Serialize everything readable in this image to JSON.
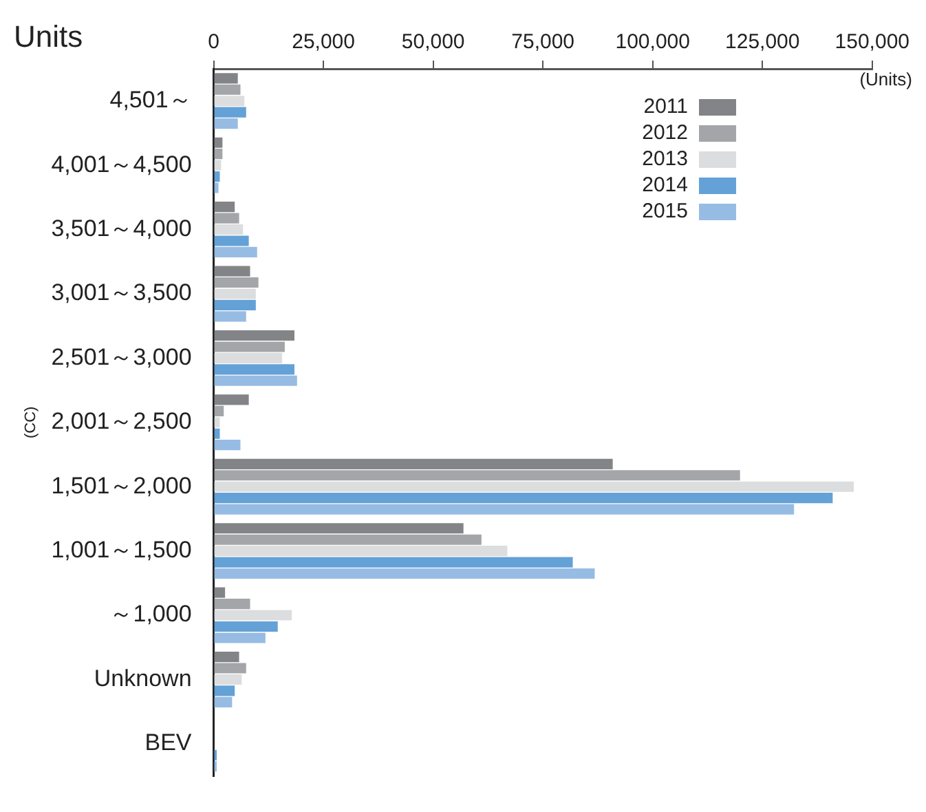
{
  "chart_data": {
    "type": "bar",
    "orientation": "horizontal",
    "title": "Units",
    "ylabel": "(CC)",
    "annotations": [
      "(Units)"
    ],
    "categories": [
      "4,501～",
      "4,001～4,500",
      "3,501～4,000",
      "3,001～3,500",
      "2,501～3,000",
      "2,001～2,500",
      "1,501～2,000",
      "1,001～1,500",
      "～1,000",
      "Unknown",
      "BEV"
    ],
    "series": [
      {
        "name": "2011",
        "color": "#838487",
        "values": [
          5500,
          2000,
          4800,
          8300,
          18400,
          8000,
          90900,
          56900,
          2600,
          5800,
          0
        ]
      },
      {
        "name": "2012",
        "color": "#a4a5a8",
        "values": [
          6100,
          2000,
          5800,
          10200,
          16200,
          2300,
          119900,
          61000,
          8300,
          7400,
          0
        ]
      },
      {
        "name": "2013",
        "color": "#dcdddf",
        "values": [
          7000,
          1700,
          6700,
          9600,
          15600,
          1400,
          145800,
          66900,
          17800,
          6400,
          0
        ]
      },
      {
        "name": "2014",
        "color": "#64a1d6",
        "values": [
          7400,
          1400,
          8000,
          9600,
          18400,
          1400,
          141000,
          81800,
          14600,
          4800,
          700
        ]
      },
      {
        "name": "2015",
        "color": "#97bce3",
        "values": [
          5500,
          1100,
          9900,
          7400,
          19000,
          6100,
          132200,
          86800,
          11800,
          4200,
          700
        ]
      }
    ],
    "xlim": [
      0,
      150000
    ],
    "xticks": [
      {
        "value": 0,
        "label": "0"
      },
      {
        "value": 25000,
        "label": "25,000"
      },
      {
        "value": 50000,
        "label": "50,000"
      },
      {
        "value": 75000,
        "label": "75,000"
      },
      {
        "value": 100000,
        "label": "100,000"
      },
      {
        "value": 125000,
        "label": "125,000"
      },
      {
        "value": 150000,
        "label": "150,000"
      }
    ],
    "legend": "top right"
  }
}
